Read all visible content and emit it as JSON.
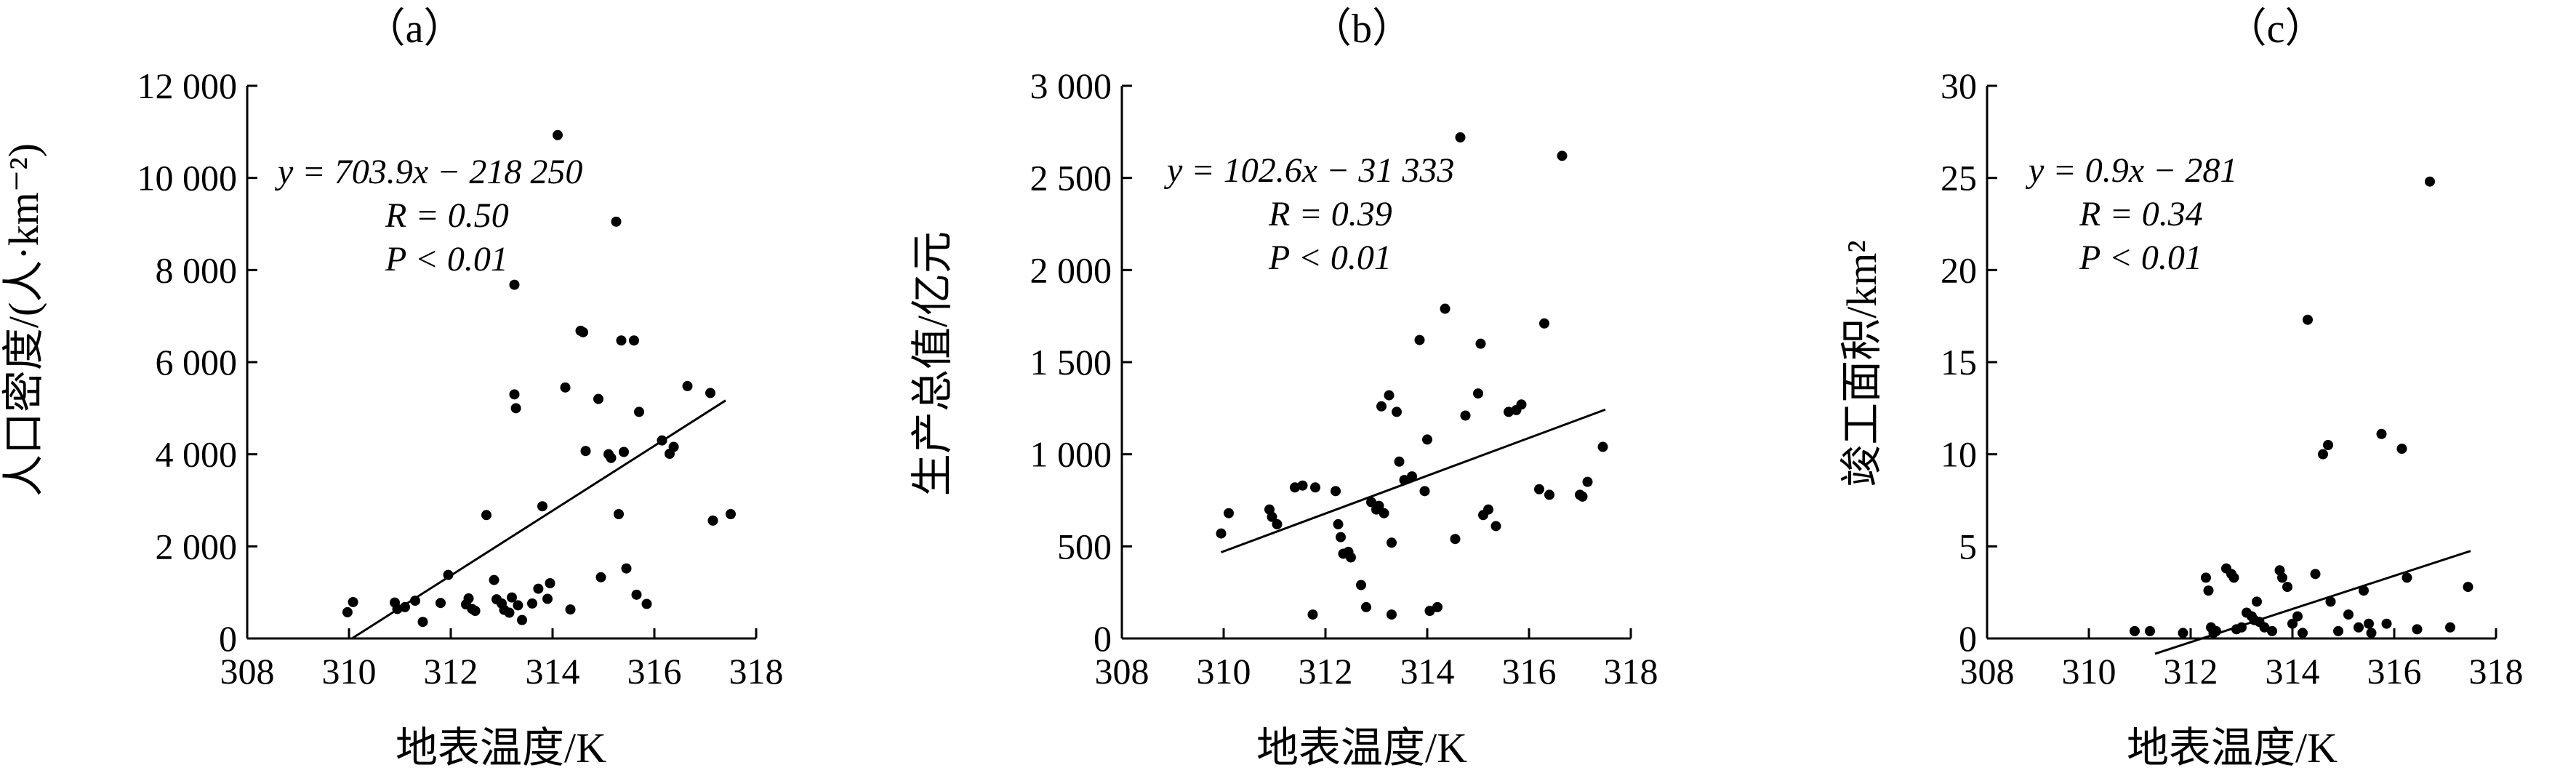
{
  "chart_data": [
    {
      "type": "scatter",
      "panel_label": "（a）",
      "xlabel": "地表温度/K",
      "ylabel": "人口密度/(人·km⁻²)",
      "xlim": [
        308,
        318
      ],
      "ylim": [
        0,
        12000
      ],
      "xticks": [
        308,
        310,
        312,
        314,
        316,
        318
      ],
      "yticks": [
        0,
        2000,
        4000,
        6000,
        8000,
        10000,
        12000
      ],
      "ytick_labels": [
        "0",
        "2 000",
        "4 000",
        "6 000",
        "8 000",
        "10 000",
        "12 000"
      ],
      "annotations": [
        "y = 703.9x − 218 250",
        "R = 0.50",
        "P < 0.01"
      ],
      "fit": {
        "slope": 703.9,
        "intercept": -218250,
        "x": [
          310.06,
          317.4
        ]
      },
      "points": [
        [
          309.97,
          570
        ],
        [
          310.08,
          790
        ],
        [
          310.9,
          780
        ],
        [
          310.95,
          640
        ],
        [
          311.1,
          680
        ],
        [
          311.3,
          820
        ],
        [
          311.45,
          360
        ],
        [
          311.8,
          770
        ],
        [
          311.95,
          1380
        ],
        [
          312.3,
          740
        ],
        [
          312.35,
          870
        ],
        [
          312.42,
          640
        ],
        [
          312.48,
          600
        ],
        [
          312.7,
          2680
        ],
        [
          312.85,
          1270
        ],
        [
          312.9,
          850
        ],
        [
          313.0,
          760
        ],
        [
          313.05,
          620
        ],
        [
          313.15,
          560
        ],
        [
          313.2,
          890
        ],
        [
          313.25,
          7680
        ],
        [
          313.25,
          5300
        ],
        [
          313.28,
          5000
        ],
        [
          313.32,
          720
        ],
        [
          313.4,
          400
        ],
        [
          313.6,
          760
        ],
        [
          313.72,
          1080
        ],
        [
          313.8,
          2870
        ],
        [
          313.9,
          860
        ],
        [
          313.95,
          1200
        ],
        [
          314.1,
          10930
        ],
        [
          314.25,
          5450
        ],
        [
          314.35,
          630
        ],
        [
          314.55,
          6680
        ],
        [
          314.6,
          6650
        ],
        [
          314.65,
          4070
        ],
        [
          314.9,
          5200
        ],
        [
          314.95,
          1330
        ],
        [
          315.1,
          4000
        ],
        [
          315.15,
          3920
        ],
        [
          315.25,
          9050
        ],
        [
          315.3,
          2700
        ],
        [
          315.35,
          6470
        ],
        [
          315.4,
          4050
        ],
        [
          315.45,
          1520
        ],
        [
          315.6,
          6470
        ],
        [
          315.65,
          950
        ],
        [
          315.7,
          4920
        ],
        [
          315.85,
          750
        ],
        [
          316.15,
          4300
        ],
        [
          316.3,
          4010
        ],
        [
          316.38,
          4160
        ],
        [
          316.65,
          5480
        ],
        [
          317.1,
          5330
        ],
        [
          317.15,
          2560
        ],
        [
          317.5,
          2700
        ]
      ]
    },
    {
      "type": "scatter",
      "panel_label": "（b）",
      "xlabel": "地表温度/K",
      "ylabel": "生产总值/亿元",
      "xlim": [
        308,
        318
      ],
      "ylim": [
        0,
        3000
      ],
      "xticks": [
        308,
        310,
        312,
        314,
        316,
        318
      ],
      "yticks": [
        0,
        500,
        1000,
        1500,
        2000,
        2500,
        3000
      ],
      "ytick_labels": [
        "0",
        "500",
        "1 000",
        "1 500",
        "2 000",
        "2 500",
        "3 000"
      ],
      "annotations": [
        "y = 102.6x − 31 333",
        "R = 0.39",
        "P < 0.01"
      ],
      "fit": {
        "slope": 102.6,
        "intercept": -31333,
        "x": [
          309.95,
          317.5
        ]
      },
      "points": [
        [
          309.95,
          570
        ],
        [
          310.1,
          680
        ],
        [
          310.9,
          700
        ],
        [
          310.95,
          660
        ],
        [
          311.05,
          620
        ],
        [
          311.4,
          820
        ],
        [
          311.55,
          830
        ],
        [
          311.75,
          130
        ],
        [
          311.8,
          820
        ],
        [
          312.2,
          800
        ],
        [
          312.25,
          620
        ],
        [
          312.3,
          550
        ],
        [
          312.35,
          460
        ],
        [
          312.45,
          470
        ],
        [
          312.5,
          440
        ],
        [
          312.7,
          290
        ],
        [
          312.8,
          170
        ],
        [
          312.9,
          740
        ],
        [
          313.0,
          700
        ],
        [
          313.05,
          720
        ],
        [
          313.1,
          1260
        ],
        [
          313.15,
          680
        ],
        [
          313.25,
          1320
        ],
        [
          313.3,
          520
        ],
        [
          313.3,
          130
        ],
        [
          313.4,
          1230
        ],
        [
          313.45,
          960
        ],
        [
          313.55,
          860
        ],
        [
          313.7,
          880
        ],
        [
          313.85,
          1620
        ],
        [
          313.95,
          800
        ],
        [
          314.0,
          1080
        ],
        [
          314.05,
          150
        ],
        [
          314.2,
          170
        ],
        [
          314.35,
          1790
        ],
        [
          314.55,
          540
        ],
        [
          314.65,
          2720
        ],
        [
          314.75,
          1210
        ],
        [
          315.0,
          1330
        ],
        [
          315.05,
          1600
        ],
        [
          315.1,
          670
        ],
        [
          315.2,
          700
        ],
        [
          315.35,
          610
        ],
        [
          315.6,
          1230
        ],
        [
          315.75,
          1240
        ],
        [
          315.85,
          1270
        ],
        [
          316.2,
          810
        ],
        [
          316.3,
          1710
        ],
        [
          316.4,
          780
        ],
        [
          316.65,
          2620
        ],
        [
          317.0,
          780
        ],
        [
          317.05,
          770
        ],
        [
          317.15,
          850
        ],
        [
          317.45,
          1040
        ]
      ]
    },
    {
      "type": "scatter",
      "panel_label": "（c）",
      "xlabel": "地表温度/K",
      "ylabel": "竣工面积/km²",
      "xlim": [
        308,
        318
      ],
      "ylim": [
        0,
        30
      ],
      "xticks": [
        308,
        310,
        312,
        314,
        316,
        318
      ],
      "yticks": [
        0,
        5,
        10,
        15,
        20,
        25,
        30
      ],
      "ytick_labels": [
        "0",
        "5",
        "10",
        "15",
        "20",
        "25",
        "30"
      ],
      "annotations": [
        "y = 0.9x − 281",
        "R = 0.34",
        "P < 0.01"
      ],
      "fit": {
        "slope": 0.9,
        "intercept": -281,
        "x": [
          311.3,
          317.5
        ]
      },
      "points": [
        [
          310.9,
          0.4
        ],
        [
          311.2,
          0.4
        ],
        [
          311.85,
          0.3
        ],
        [
          312.3,
          3.3
        ],
        [
          312.35,
          2.6
        ],
        [
          312.4,
          0.6
        ],
        [
          312.45,
          0.3
        ],
        [
          312.5,
          0.4
        ],
        [
          312.7,
          3.8
        ],
        [
          312.8,
          3.5
        ],
        [
          312.85,
          3.3
        ],
        [
          312.9,
          0.5
        ],
        [
          313.0,
          0.6
        ],
        [
          313.1,
          1.4
        ],
        [
          313.2,
          1.2
        ],
        [
          313.25,
          1.0
        ],
        [
          313.3,
          2.0
        ],
        [
          313.35,
          0.9
        ],
        [
          313.45,
          0.6
        ],
        [
          313.6,
          0.4
        ],
        [
          313.75,
          3.7
        ],
        [
          313.8,
          3.3
        ],
        [
          313.9,
          2.8
        ],
        [
          314.0,
          0.8
        ],
        [
          314.1,
          1.2
        ],
        [
          314.2,
          0.3
        ],
        [
          314.3,
          17.3
        ],
        [
          314.45,
          3.5
        ],
        [
          314.6,
          10.0
        ],
        [
          314.7,
          10.5
        ],
        [
          314.75,
          2.0
        ],
        [
          314.9,
          0.4
        ],
        [
          315.1,
          1.3
        ],
        [
          315.3,
          0.6
        ],
        [
          315.4,
          2.6
        ],
        [
          315.5,
          0.8
        ],
        [
          315.55,
          0.3
        ],
        [
          315.75,
          11.1
        ],
        [
          315.85,
          0.8
        ],
        [
          316.15,
          10.3
        ],
        [
          316.25,
          3.3
        ],
        [
          316.45,
          0.5
        ],
        [
          316.7,
          24.8
        ],
        [
          317.1,
          0.6
        ],
        [
          317.45,
          2.8
        ]
      ]
    }
  ]
}
